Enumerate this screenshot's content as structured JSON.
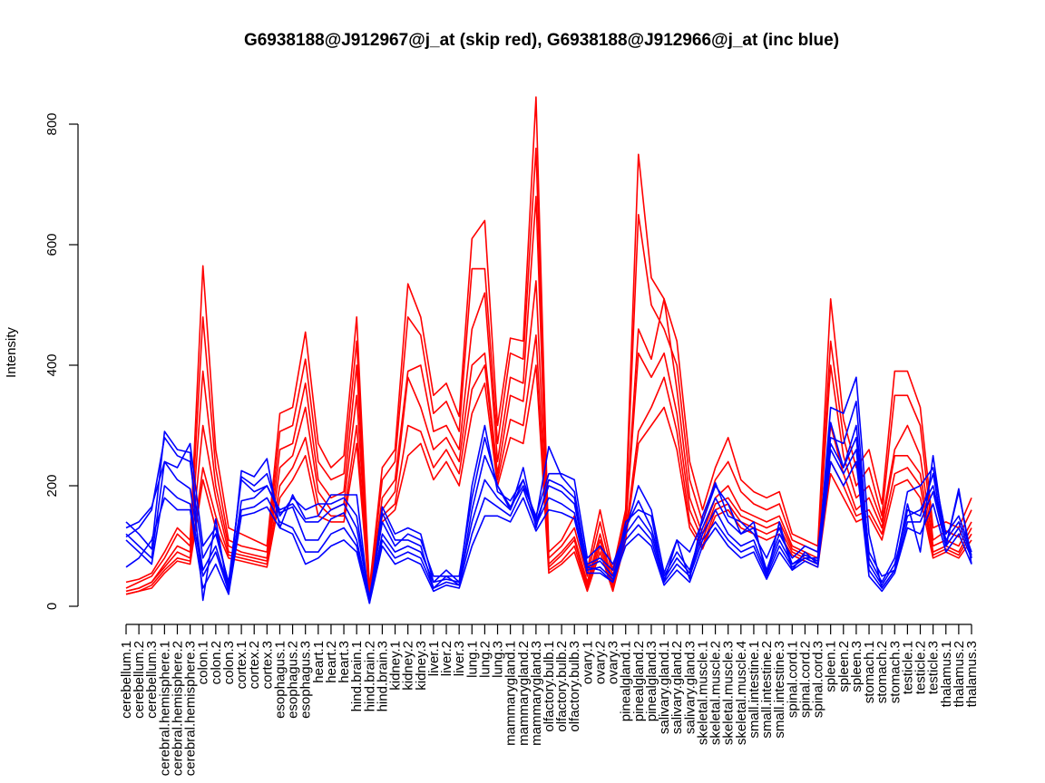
{
  "chart_data": {
    "type": "line",
    "title": "G6938188@J912967@j_at (skip red), G6938188@J912966@j_at (inc blue)",
    "xlabel": "",
    "ylabel": "Intensity",
    "ylim": [
      0,
      840
    ],
    "yticks": [
      0,
      200,
      400,
      600,
      800
    ],
    "grid": false,
    "categories": [
      "cerebellum.1",
      "cerebellum.2",
      "cerebellum.3",
      "cerebral.hemisphere.1",
      "cerebral.hemisphere.2",
      "cerebral.hemisphere.3",
      "colon.1",
      "colon.2",
      "colon.3",
      "cortex.1",
      "cortex.2",
      "cortex.3",
      "esophagus.1",
      "esophagus.2",
      "esophagus.3",
      "heart.1",
      "heart.2",
      "heart.3",
      "hind.brain.1",
      "hind.brain.2",
      "hind.brain.3",
      "kidney.1",
      "kidney.2",
      "kidney.3",
      "liver.1",
      "liver.2",
      "liver.3",
      "lung.1",
      "lung.2",
      "lung.3",
      "mammarygland.1",
      "mammarygland.2",
      "mammarygland.3",
      "olfactory.bulb.1",
      "olfactory.bulb.2",
      "olfactory.bulb.3",
      "ovary.1",
      "ovary.2",
      "ovary.3",
      "pinealgland.1",
      "pinealgland.2",
      "pinealgland.3",
      "salivary.gland.1",
      "salivary.gland.2",
      "salivary.gland.3",
      "skeletal.muscle.1",
      "skeletal.muscle.2",
      "skeletal.muscle.3",
      "skeletal.muscle.4",
      "small.intestine.1",
      "small.intestine.2",
      "small.intestine.3",
      "spinal.cord.1",
      "spinal.cord.2",
      "spinal.cord.3",
      "spleen.1",
      "spleen.2",
      "spleen.3",
      "stomach.1",
      "stomach.2",
      "stomach.3",
      "testicle.1",
      "testicle.2",
      "testicle.3",
      "thalamus.1",
      "thalamus.2",
      "thalamus.3"
    ],
    "colors": {
      "skip": "#ff0000",
      "inc": "#0000ff"
    },
    "series": [
      {
        "group": "skip",
        "values": [
          40,
          45,
          55,
          90,
          130,
          110,
          565,
          260,
          130,
          120,
          110,
          100,
          320,
          330,
          455,
          270,
          230,
          250,
          480,
          30,
          230,
          260,
          535,
          480,
          350,
          370,
          315,
          610,
          640,
          300,
          445,
          440,
          845,
          90,
          110,
          150,
          60,
          160,
          60,
          160,
          750,
          545,
          510,
          440,
          240,
          160,
          230,
          280,
          210,
          190,
          180,
          190,
          120,
          110,
          100,
          510,
          310,
          230,
          260,
          170,
          390,
          390,
          330,
          130,
          140,
          130,
          180
        ]
      },
      {
        "group": "skip",
        "values": [
          30,
          40,
          50,
          80,
          120,
          100,
          480,
          230,
          110,
          100,
          95,
          90,
          290,
          300,
          410,
          240,
          210,
          220,
          440,
          25,
          210,
          240,
          480,
          450,
          320,
          340,
          290,
          560,
          560,
          270,
          420,
          410,
          760,
          80,
          100,
          130,
          50,
          140,
          50,
          150,
          650,
          500,
          460,
          400,
          210,
          140,
          210,
          240,
          190,
          170,
          160,
          170,
          110,
          100,
          90,
          440,
          280,
          200,
          230,
          150,
          350,
          350,
          300,
          110,
          125,
          115,
          160
        ]
      },
      {
        "group": "skip",
        "values": [
          25,
          30,
          40,
          70,
          100,
          90,
          390,
          200,
          100,
          90,
          85,
          80,
          260,
          270,
          370,
          210,
          180,
          190,
          400,
          20,
          180,
          210,
          390,
          400,
          290,
          300,
          260,
          460,
          520,
          240,
          380,
          370,
          680,
          70,
          90,
          115,
          40,
          120,
          40,
          140,
          460,
          410,
          510,
          360,
          180,
          120,
          180,
          200,
          160,
          150,
          140,
          150,
          100,
          90,
          80,
          400,
          250,
          180,
          200,
          140,
          260,
          300,
          250,
          100,
          110,
          100,
          140
        ]
      },
      {
        "group": "skip",
        "values": [
          25,
          30,
          40,
          65,
          90,
          80,
          300,
          180,
          90,
          85,
          80,
          75,
          230,
          250,
          330,
          190,
          160,
          170,
          350,
          20,
          160,
          190,
          380,
          330,
          260,
          280,
          240,
          400,
          420,
          220,
          350,
          340,
          540,
          65,
          85,
          110,
          35,
          110,
          35,
          130,
          420,
          380,
          420,
          320,
          160,
          110,
          170,
          180,
          150,
          140,
          130,
          140,
          95,
          85,
          75,
          300,
          220,
          160,
          180,
          130,
          250,
          250,
          220,
          90,
          100,
          90,
          130
        ]
      },
      {
        "group": "skip",
        "values": [
          20,
          25,
          35,
          60,
          80,
          75,
          230,
          150,
          85,
          80,
          75,
          70,
          200,
          230,
          280,
          170,
          150,
          150,
          300,
          15,
          150,
          170,
          300,
          290,
          230,
          260,
          220,
          360,
          400,
          210,
          310,
          300,
          450,
          60,
          75,
          100,
          30,
          100,
          30,
          120,
          290,
          330,
          380,
          290,
          140,
          100,
          160,
          170,
          140,
          130,
          120,
          130,
          90,
          80,
          70,
          240,
          200,
          150,
          160,
          120,
          220,
          230,
          200,
          85,
          95,
          85,
          120
        ]
      },
      {
        "group": "skip",
        "values": [
          20,
          25,
          30,
          55,
          75,
          70,
          210,
          130,
          80,
          75,
          70,
          65,
          180,
          210,
          250,
          150,
          140,
          140,
          270,
          15,
          140,
          160,
          250,
          270,
          210,
          240,
          200,
          320,
          370,
          200,
          280,
          270,
          400,
          55,
          70,
          90,
          25,
          90,
          25,
          110,
          270,
          300,
          330,
          260,
          130,
          95,
          150,
          160,
          130,
          120,
          110,
          120,
          85,
          75,
          65,
          220,
          180,
          140,
          150,
          110,
          200,
          210,
          180,
          80,
          90,
          80,
          110
        ]
      },
      {
        "group": "inc",
        "values": [
          140,
          120,
          95,
          290,
          260,
          255,
          10,
          145,
          20,
          225,
          215,
          245,
          130,
          185,
          145,
          150,
          185,
          185,
          185,
          5,
          165,
          120,
          130,
          120,
          40,
          60,
          40,
          200,
          300,
          190,
          175,
          210,
          145,
          265,
          215,
          190,
          65,
          60,
          40,
          140,
          160,
          150,
          40,
          110,
          90,
          140,
          200,
          170,
          120,
          140,
          50,
          140,
          60,
          90,
          70,
          330,
          320,
          380,
          120,
          30,
          60,
          170,
          90,
          250,
          100,
          195,
          70
        ]
      },
      {
        "group": "inc",
        "values": [
          120,
          100,
          80,
          240,
          230,
          270,
          100,
          130,
          35,
          215,
          200,
          220,
          150,
          180,
          160,
          170,
          170,
          180,
          150,
          10,
          155,
          110,
          110,
          100,
          30,
          50,
          35,
          160,
          250,
          200,
          165,
          200,
          150,
          220,
          220,
          210,
          80,
          100,
          70,
          125,
          200,
          160,
          55,
          110,
          45,
          150,
          205,
          150,
          140,
          120,
          80,
          130,
          70,
          80,
          80,
          305,
          230,
          300,
          90,
          50,
          60,
          160,
          150,
          220,
          100,
          190,
          80
        ]
      },
      {
        "group": "inc",
        "values": [
          115,
          130,
          160,
          280,
          250,
          240,
          80,
          120,
          40,
          210,
          190,
          200,
          160,
          170,
          140,
          140,
          160,
          170,
          130,
          15,
          140,
          100,
          120,
          110,
          50,
          50,
          50,
          180,
          280,
          200,
          160,
          230,
          130,
          210,
          200,
          180,
          70,
          80,
          60,
          130,
          175,
          130,
          50,
          90,
          60,
          130,
          180,
          140,
          120,
          130,
          60,
          120,
          80,
          100,
          90,
          280,
          270,
          340,
          80,
          40,
          80,
          190,
          200,
          230,
          120,
          150,
          90
        ]
      },
      {
        "group": "inc",
        "values": [
          130,
          140,
          165,
          240,
          210,
          195,
          60,
          100,
          30,
          175,
          180,
          200,
          155,
          165,
          110,
          110,
          145,
          155,
          110,
          10,
          120,
          90,
          100,
          90,
          40,
          45,
          40,
          140,
          210,
          180,
          160,
          210,
          140,
          200,
          190,
          170,
          65,
          75,
          50,
          120,
          150,
          120,
          45,
          80,
          55,
          120,
          160,
          120,
          100,
          110,
          55,
          110,
          70,
          85,
          75,
          270,
          230,
          280,
          70,
          35,
          70,
          150,
          160,
          200,
          110,
          140,
          85
        ]
      },
      {
        "group": "inc",
        "values": [
          110,
          90,
          70,
          200,
          180,
          170,
          50,
          90,
          25,
          160,
          165,
          180,
          140,
          130,
          90,
          90,
          120,
          130,
          100,
          8,
          110,
          80,
          90,
          80,
          30,
          40,
          35,
          120,
          180,
          165,
          150,
          195,
          135,
          180,
          170,
          155,
          60,
          65,
          45,
          110,
          135,
          110,
          40,
          70,
          50,
          110,
          140,
          110,
          90,
          100,
          50,
          100,
          65,
          80,
          70,
          260,
          220,
          260,
          60,
          30,
          60,
          140,
          140,
          190,
          100,
          130,
          80
        ]
      },
      {
        "group": "inc",
        "values": [
          65,
          80,
          110,
          180,
          160,
          160,
          30,
          70,
          20,
          150,
          155,
          165,
          130,
          120,
          70,
          80,
          100,
          110,
          90,
          5,
          100,
          70,
          80,
          70,
          25,
          35,
          30,
          100,
          150,
          150,
          140,
          180,
          125,
          160,
          155,
          145,
          55,
          55,
          40,
          100,
          120,
          100,
          35,
          60,
          40,
          100,
          130,
          100,
          80,
          90,
          45,
          90,
          60,
          75,
          65,
          240,
          200,
          240,
          50,
          25,
          55,
          130,
          120,
          170,
          90,
          120,
          70
        ]
      }
    ]
  }
}
